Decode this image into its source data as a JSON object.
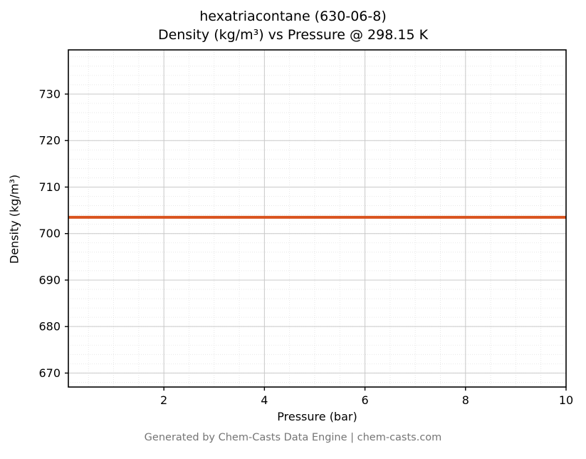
{
  "header": {
    "title_line1": "hexatriacontane (630-06-8)",
    "title_line2": "Density (kg/m³) vs Pressure @ 298.15 K"
  },
  "footer": {
    "credit": "Generated by Chem-Casts Data Engine | chem-casts.com"
  },
  "chart_data": {
    "type": "line",
    "title": "hexatriacontane (630-06-8)",
    "subtitle": "Density (kg/m³) vs Pressure @ 298.15 K",
    "xlabel": "Pressure (bar)",
    "ylabel": "Density (kg/m³)",
    "x": [
      0.1,
      10
    ],
    "series": [
      {
        "name": "density",
        "values": [
          703.5,
          703.5
        ],
        "color": "#d9531e",
        "line_width": 4
      }
    ],
    "xlim": [
      0.1,
      10
    ],
    "ylim": [
      667,
      739.5
    ],
    "xticks": [
      2,
      4,
      6,
      8,
      10
    ],
    "yticks": [
      670,
      680,
      690,
      700,
      710,
      720,
      730
    ],
    "x_minor_step": 0.5,
    "y_minor_step": 2,
    "grid": true,
    "legend_position": "none",
    "colors": {
      "major_grid": "#c9c9c9",
      "minor_grid": "#e2e2e2",
      "spine": "#000000",
      "tick_label": "#000000"
    }
  }
}
